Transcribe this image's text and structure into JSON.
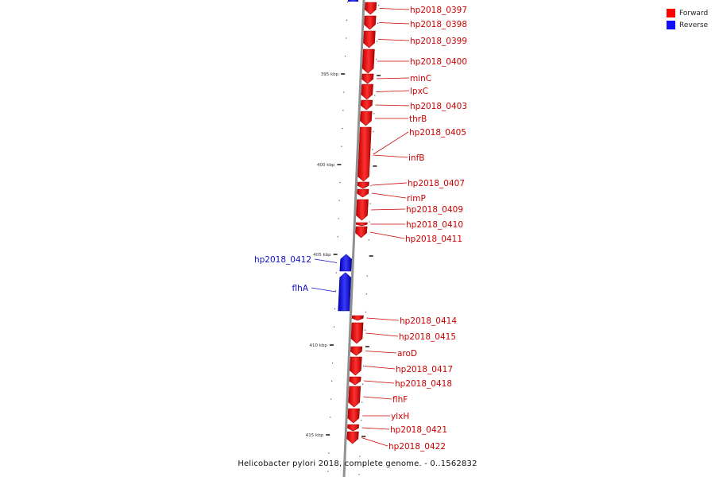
{
  "legend": {
    "forward_label": "Forward",
    "reverse_label": "Reverse",
    "forward_color": "#ff0000",
    "reverse_color": "#1010ff"
  },
  "caption": "Helicobacter pylori 2018, complete genome. - 0..1562832",
  "ticks": [
    "395 kbp",
    "400 kbp",
    "405 kbp",
    "410 kbp",
    "415 kbp"
  ],
  "genes": [
    {
      "label": "hp2018_0397",
      "strand": "forward"
    },
    {
      "label": "hp2018_0398",
      "strand": "forward"
    },
    {
      "label": "hp2018_0399",
      "strand": "forward"
    },
    {
      "label": "hp2018_0400",
      "strand": "forward"
    },
    {
      "label": "minC",
      "strand": "forward"
    },
    {
      "label": "lpxC",
      "strand": "forward"
    },
    {
      "label": "hp2018_0403",
      "strand": "forward"
    },
    {
      "label": "thrB",
      "strand": "forward"
    },
    {
      "label": "hp2018_0405",
      "strand": "forward"
    },
    {
      "label": "infB",
      "strand": "forward"
    },
    {
      "label": "hp2018_0407",
      "strand": "forward"
    },
    {
      "label": "rimP",
      "strand": "forward"
    },
    {
      "label": "hp2018_0409",
      "strand": "forward"
    },
    {
      "label": "hp2018_0410",
      "strand": "forward"
    },
    {
      "label": "hp2018_0411",
      "strand": "forward"
    },
    {
      "label": "hp2018_0412",
      "strand": "reverse"
    },
    {
      "label": "flhA",
      "strand": "reverse"
    },
    {
      "label": "hp2018_0414",
      "strand": "forward"
    },
    {
      "label": "hp2018_0415",
      "strand": "forward"
    },
    {
      "label": "aroD",
      "strand": "forward"
    },
    {
      "label": "hp2018_0417",
      "strand": "forward"
    },
    {
      "label": "hp2018_0418",
      "strand": "forward"
    },
    {
      "label": "flhF",
      "strand": "forward"
    },
    {
      "label": "ylxH",
      "strand": "forward"
    },
    {
      "label": "hp2018_0421",
      "strand": "forward"
    },
    {
      "label": "hp2018_0422",
      "strand": "forward"
    }
  ]
}
